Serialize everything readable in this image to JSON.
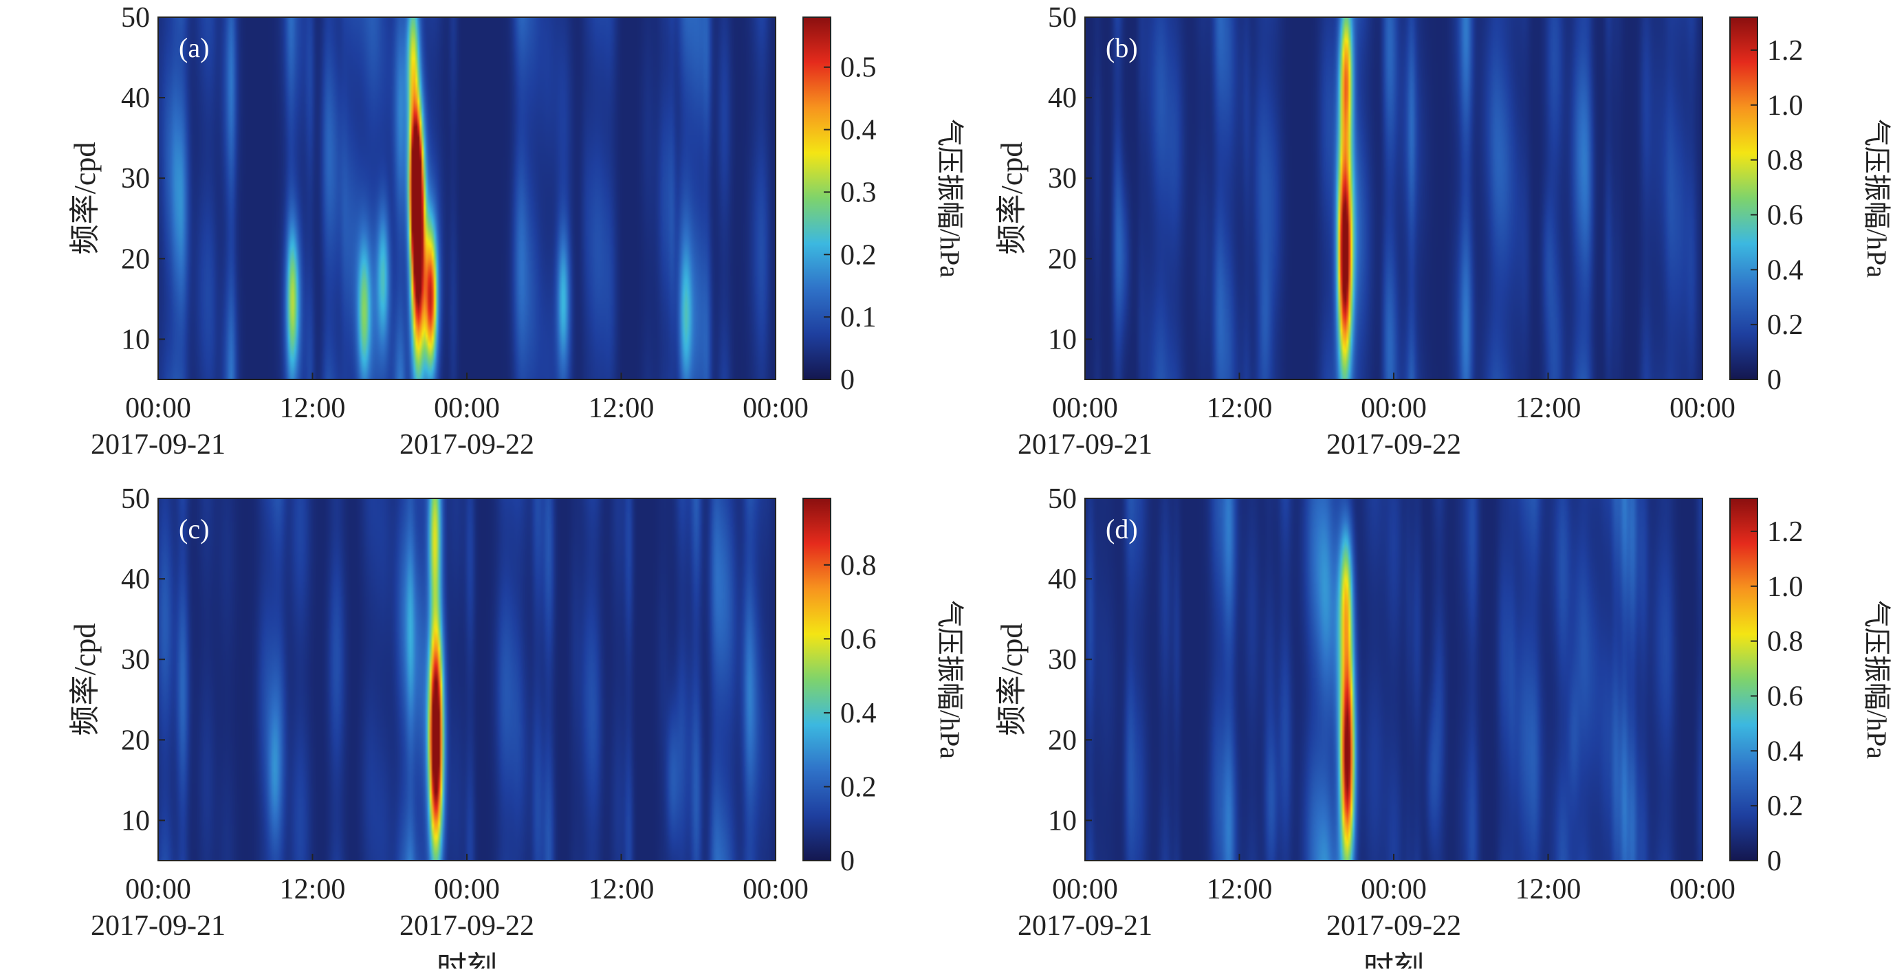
{
  "figure": {
    "xlabel": "时刻",
    "colors": {
      "colormap": [
        "#14174f",
        "#1e3f9f",
        "#2f72c8",
        "#3cb8e0",
        "#7ed36c",
        "#f4e514",
        "#f7941e",
        "#e52b1c",
        "#8a0f0f"
      ],
      "background_field": "#203d9a",
      "axis": "#222222"
    }
  },
  "chart_data": [
    {
      "type": "heatmap",
      "panel_label": "(a)",
      "ylabel": "频率/cpd",
      "ylim": [
        5,
        50
      ],
      "yticks": [
        "10",
        "20",
        "30",
        "40",
        "50"
      ],
      "x_ticks": [
        {
          "time": "00:00",
          "date": "2017-09-21"
        },
        {
          "time": "12:00",
          "date": ""
        },
        {
          "time": "00:00",
          "date": "2017-09-22"
        },
        {
          "time": "12:00",
          "date": ""
        },
        {
          "time": "00:00",
          "date": ""
        }
      ],
      "xlim_hours": [
        0,
        48
      ],
      "colorbar": {
        "label": "气压振幅/hPa",
        "range": [
          0,
          0.58
        ],
        "ticks": [
          "0",
          "0.1",
          "0.2",
          "0.3",
          "0.4",
          "0.5"
        ]
      },
      "features": [
        {
          "time_h": 20.2,
          "freq_center": 20,
          "peak_amplitude": 0.57,
          "description": "main"
        },
        {
          "time_h": 20.0,
          "freq_center": 30,
          "peak_amplitude": 0.5
        },
        {
          "time_h": 21.2,
          "freq_center": 15,
          "peak_amplitude": 0.45
        },
        {
          "time_h": 19.8,
          "freq_center": 45,
          "peak_amplitude": 0.28
        },
        {
          "time_h": 10.5,
          "freq_center": 15,
          "peak_amplitude": 0.2
        },
        {
          "time_h": 16.0,
          "freq_center": 13,
          "peak_amplitude": 0.2
        },
        {
          "time_h": 17.5,
          "freq_center": 18,
          "peak_amplitude": 0.17
        },
        {
          "time_h": 31.5,
          "freq_center": 15,
          "peak_amplitude": 0.17
        },
        {
          "time_h": 41.0,
          "freq_center": 12,
          "peak_amplitude": 0.12
        }
      ]
    },
    {
      "type": "heatmap",
      "panel_label": "(b)",
      "ylabel": "频率/cpd",
      "ylim": [
        5,
        50
      ],
      "yticks": [
        "10",
        "20",
        "30",
        "40",
        "50"
      ],
      "x_ticks": [
        {
          "time": "00:00",
          "date": "2017-09-21"
        },
        {
          "time": "12:00",
          "date": ""
        },
        {
          "time": "00:00",
          "date": "2017-09-22"
        },
        {
          "time": "12:00",
          "date": ""
        },
        {
          "time": "00:00",
          "date": ""
        }
      ],
      "xlim_hours": [
        0,
        48
      ],
      "colorbar": {
        "label": "气压振幅/hPa",
        "range": [
          0,
          1.32
        ],
        "ticks": [
          "0",
          "0.2",
          "0.4",
          "0.6",
          "0.8",
          "1.0",
          "1.2"
        ]
      },
      "features": [
        {
          "time_h": 20.2,
          "freq_center": 20,
          "peak_amplitude": 1.3,
          "description": "main"
        },
        {
          "time_h": 20.3,
          "freq_center": 43,
          "peak_amplitude": 0.8
        },
        {
          "time_h": 3.0,
          "freq_center": 20,
          "peak_amplitude": 0.12
        },
        {
          "time_h": 14.0,
          "freq_center": 12,
          "peak_amplitude": 0.12
        },
        {
          "time_h": 36.0,
          "freq_center": 20,
          "peak_amplitude": 0.1
        }
      ]
    },
    {
      "type": "heatmap",
      "panel_label": "(c)",
      "ylabel": "频率/cpd",
      "ylim": [
        5,
        50
      ],
      "yticks": [
        "10",
        "20",
        "30",
        "40",
        "50"
      ],
      "x_ticks": [
        {
          "time": "00:00",
          "date": "2017-09-21"
        },
        {
          "time": "12:00",
          "date": ""
        },
        {
          "time": "00:00",
          "date": "2017-09-22"
        },
        {
          "time": "12:00",
          "date": ""
        },
        {
          "time": "00:00",
          "date": ""
        }
      ],
      "xlim_hours": [
        0,
        48
      ],
      "colorbar": {
        "label": "气压振幅/hPa",
        "range": [
          0,
          0.98
        ],
        "ticks": [
          "0",
          "0.2",
          "0.4",
          "0.6",
          "0.8"
        ]
      },
      "features": [
        {
          "time_h": 21.6,
          "freq_center": 20,
          "peak_amplitude": 0.96,
          "description": "main"
        },
        {
          "time_h": 21.5,
          "freq_center": 45,
          "peak_amplitude": 0.4
        },
        {
          "time_h": 9.0,
          "freq_center": 15,
          "peak_amplitude": 0.12
        },
        {
          "time_h": 40.0,
          "freq_center": 15,
          "peak_amplitude": 0.12
        }
      ]
    },
    {
      "type": "heatmap",
      "panel_label": "(d)",
      "ylabel": "频率/cpd",
      "ylim": [
        5,
        50
      ],
      "yticks": [
        "10",
        "20",
        "30",
        "40",
        "50"
      ],
      "x_ticks": [
        {
          "time": "00:00",
          "date": "2017-09-21"
        },
        {
          "time": "12:00",
          "date": ""
        },
        {
          "time": "00:00",
          "date": "2017-09-22"
        },
        {
          "time": "12:00",
          "date": ""
        },
        {
          "time": "00:00",
          "date": ""
        }
      ],
      "xlim_hours": [
        0,
        48
      ],
      "colorbar": {
        "label": "气压振幅/hPa",
        "range": [
          0,
          1.32
        ],
        "ticks": [
          "0",
          "0.2",
          "0.4",
          "0.6",
          "0.8",
          "1.0",
          "1.2"
        ]
      },
      "features": [
        {
          "time_h": 20.4,
          "freq_center": 18,
          "peak_amplitude": 1.3,
          "description": "main"
        },
        {
          "time_h": 20.3,
          "freq_center": 38,
          "peak_amplitude": 0.6
        },
        {
          "time_h": 14.5,
          "freq_center": 12,
          "peak_amplitude": 0.14
        },
        {
          "time_h": 27.0,
          "freq_center": 15,
          "peak_amplitude": 0.12
        },
        {
          "time_h": 38.0,
          "freq_center": 20,
          "peak_amplitude": 0.12
        }
      ]
    }
  ]
}
